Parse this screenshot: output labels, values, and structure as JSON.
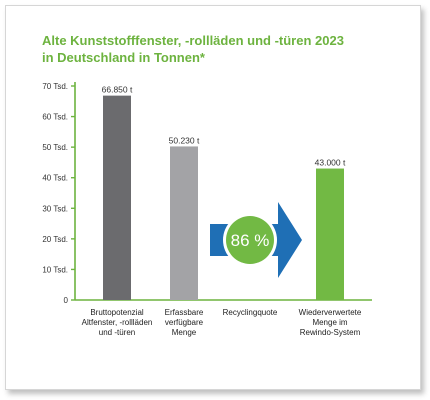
{
  "chart_data": {
    "type": "bar",
    "title_lines": [
      "Alte Kunststofffenster, -rollläden und -türen 2023",
      "in Deutschland in Tonnen*"
    ],
    "ylim": [
      0,
      70000
    ],
    "y_ticks": [
      {
        "value": 0,
        "label": "0"
      },
      {
        "value": 10000,
        "label": "10 Tsd."
      },
      {
        "value": 20000,
        "label": "20 Tsd."
      },
      {
        "value": 30000,
        "label": "30 Tsd."
      },
      {
        "value": 40000,
        "label": "40 Tsd."
      },
      {
        "value": 50000,
        "label": "50 Tsd."
      },
      {
        "value": 60000,
        "label": "60 Tsd."
      },
      {
        "value": 70000,
        "label": "70 Tsd."
      }
    ],
    "categories": [
      {
        "lines": [
          "Bruttopotenzial",
          "Altfenster, -rollläden",
          "und -türen"
        ]
      },
      {
        "lines": [
          "Erfassbare",
          "verfügbare",
          "Menge"
        ]
      },
      {
        "lines": [
          "Recyclingquote"
        ]
      },
      {
        "lines": [
          "Wiederverwertete",
          "Menge im",
          "Rewindo-System"
        ]
      }
    ],
    "bars": [
      {
        "category_index": 0,
        "value": 66850,
        "label": "66.850 t",
        "color": "#6b6b6e"
      },
      {
        "category_index": 1,
        "value": 50230,
        "label": "50.230 t",
        "color": "#a3a3a6"
      },
      {
        "category_index": 3,
        "value": 43000,
        "label": "43.000 t",
        "color": "#72b944"
      }
    ],
    "recycling_rate": {
      "category_index": 2,
      "label": "86 %",
      "value_percent": 86
    },
    "colors": {
      "title": "#6db33f",
      "axis": "#6db33f",
      "arrow": "#1f6fb5",
      "circle": "#72b944",
      "circle_ring": "#ffffff"
    },
    "grid": false,
    "legend": "none"
  }
}
